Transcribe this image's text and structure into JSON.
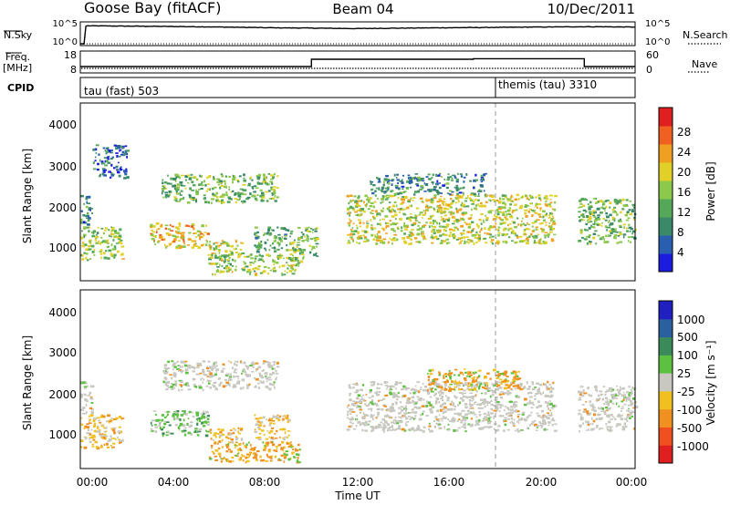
{
  "header": {
    "title": "Goose Bay (fitACF)",
    "beam": "Beam 04",
    "date": "10/Dec/2011"
  },
  "noise_panel": {
    "left_label": "N.Sky",
    "right_label": "N.Search",
    "left_ticks": [
      "10^5",
      "10^0"
    ],
    "right_ticks": [
      "10^5",
      "10^0"
    ]
  },
  "freq_panel": {
    "left_label_1": "Freq.",
    "left_label_2": "[MHz]",
    "right_label": "Nave",
    "left_ticks": [
      "18",
      "8"
    ],
    "right_ticks": [
      "60",
      "0"
    ]
  },
  "cpid_panel": {
    "label": "CPID",
    "modes": [
      {
        "name": "tau (fast) 503",
        "start_hour": 0
      },
      {
        "name": "themis (tau) 3310",
        "start_hour": 18
      }
    ]
  },
  "time_axis": {
    "ticks": [
      "00:00",
      "04:00",
      "08:00",
      "12:00",
      "16:00",
      "20:00",
      "00:00"
    ],
    "xlabel": "Time UT"
  },
  "power_panel": {
    "ylabel": "Slant Range [km]",
    "yticks": [
      "4000",
      "3000",
      "2000",
      "1000"
    ],
    "colorbar_label": "Power [dB]",
    "colorbar_ticks": [
      "28",
      "24",
      "20",
      "16",
      "12",
      "8",
      "4"
    ],
    "colors": [
      "#1c1ce0",
      "#2a5fb0",
      "#3a8a6a",
      "#55a85a",
      "#8cc84a",
      "#e0d028",
      "#f0a020",
      "#f06020",
      "#e02020"
    ]
  },
  "velocity_panel": {
    "ylabel": "Slant Range [km]",
    "yticks": [
      "4000",
      "3000",
      "2000",
      "1000"
    ],
    "colorbar_label": "Velocity [m s⁻¹]",
    "colorbar_ticks": [
      "1000",
      "500",
      "100",
      "25",
      "-25",
      "-100",
      "-500",
      "-1000"
    ],
    "colors": [
      "#2020c0",
      "#2a60a0",
      "#3a8a5a",
      "#5cc040",
      "#c8c8c0",
      "#f0c020",
      "#f09020",
      "#f05020",
      "#e02020"
    ]
  },
  "chart_data": [
    {
      "type": "line",
      "title": "Goose Bay (fitACF)",
      "series": [
        {
          "name": "N.Sky",
          "x": [
            0,
            0.2,
            0.25,
            2,
            4,
            6,
            8,
            10,
            12,
            14,
            16,
            18,
            20,
            22,
            24
          ],
          "values": [
            1,
            1,
            30000,
            25000,
            20000,
            15000,
            10000,
            8000,
            6000,
            8000,
            10000,
            12000,
            15000,
            18000,
            15000
          ]
        },
        {
          "name": "N.Search",
          "x": [
            0,
            24
          ],
          "values": [
            1,
            1
          ]
        }
      ],
      "xlim": [
        0,
        24
      ]
    },
    {
      "type": "line",
      "series": [
        {
          "name": "Freq.",
          "x": [
            0,
            10,
            10,
            17,
            17,
            21.8,
            21.8,
            24
          ],
          "values": [
            10.5,
            10.5,
            14.5,
            14.5,
            14.8,
            14.8,
            10.5,
            10.5
          ]
        },
        {
          "name": "Nave",
          "x": [
            0,
            24
          ],
          "values": [
            10,
            10
          ]
        }
      ],
      "xlim": [
        0,
        24
      ],
      "ylim": [
        8,
        18
      ]
    },
    {
      "type": "heatmap",
      "ylabel": "Slant Range [km]",
      "xlabel": "Time UT",
      "colorbar": "Power [dB]",
      "xlim": [
        0,
        24
      ],
      "ylim": [
        180,
        4500
      ],
      "regions": [
        {
          "t0": 0.0,
          "t1": 1.8,
          "r0": 700,
          "r1": 1500,
          "value": 16
        },
        {
          "t0": 0.0,
          "t1": 0.5,
          "r0": 1500,
          "r1": 2300,
          "value": 10
        },
        {
          "t0": 0.5,
          "t1": 2.0,
          "r0": 2700,
          "r1": 3500,
          "value": 8
        },
        {
          "t0": 3.0,
          "t1": 5.5,
          "r0": 1000,
          "r1": 1600,
          "value": 20
        },
        {
          "t0": 3.5,
          "t1": 8.5,
          "r0": 2100,
          "r1": 2800,
          "value": 14
        },
        {
          "t0": 5.5,
          "t1": 7.0,
          "r0": 800,
          "r1": 1200,
          "value": 18
        },
        {
          "t0": 5.5,
          "t1": 9.5,
          "r0": 350,
          "r1": 850,
          "value": 16
        },
        {
          "t0": 7.5,
          "t1": 9.0,
          "r0": 900,
          "r1": 1500,
          "value": 12
        },
        {
          "t0": 9.0,
          "t1": 10.2,
          "r0": 700,
          "r1": 1500,
          "value": 14
        },
        {
          "t0": 11.5,
          "t1": 20.5,
          "r0": 1100,
          "r1": 2300,
          "value": 18
        },
        {
          "t0": 12.5,
          "t1": 17.5,
          "r0": 2300,
          "r1": 2800,
          "value": 10
        },
        {
          "t0": 21.5,
          "t1": 24.0,
          "r0": 1100,
          "r1": 2200,
          "value": 14
        }
      ]
    },
    {
      "type": "heatmap",
      "ylabel": "Slant Range [km]",
      "xlabel": "Time UT",
      "colorbar": "Velocity [m s⁻¹]",
      "xlim": [
        0,
        24
      ],
      "ylim": [
        180,
        4500
      ],
      "regions": [
        {
          "t0": 0.0,
          "t1": 1.8,
          "r0": 700,
          "r1": 1500,
          "value": -100
        },
        {
          "t0": 0.0,
          "t1": 0.5,
          "r0": 1500,
          "r1": 2300,
          "value": 0
        },
        {
          "t0": 3.0,
          "t1": 5.5,
          "r0": 1000,
          "r1": 1600,
          "value": 100
        },
        {
          "t0": 3.5,
          "t1": 8.5,
          "r0": 2100,
          "r1": 2800,
          "value": 0
        },
        {
          "t0": 5.5,
          "t1": 7.0,
          "r0": 800,
          "r1": 1200,
          "value": -100
        },
        {
          "t0": 5.5,
          "t1": 9.5,
          "r0": 350,
          "r1": 850,
          "value": -500
        },
        {
          "t0": 7.5,
          "t1": 9.0,
          "r0": 900,
          "r1": 1500,
          "value": -100
        },
        {
          "t0": 11.5,
          "t1": 20.5,
          "r0": 1100,
          "r1": 2300,
          "value": 0
        },
        {
          "t0": 15.0,
          "t1": 19.0,
          "r0": 2100,
          "r1": 2600,
          "value": -500
        },
        {
          "t0": 21.5,
          "t1": 24.0,
          "r0": 1100,
          "r1": 2200,
          "value": 0
        }
      ]
    }
  ]
}
